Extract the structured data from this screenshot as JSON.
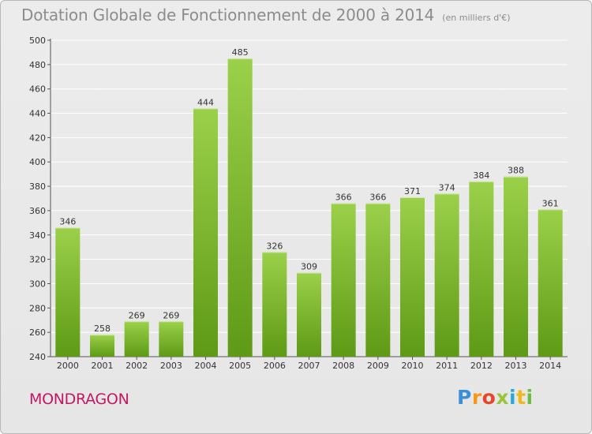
{
  "header": {
    "title": "Dotation Globale de Fonctionnement de 2000 à 2014",
    "unit": "(en milliers d'€)"
  },
  "footer": {
    "commune": "MONDRAGON",
    "logo_text": "Proxiti"
  },
  "colors": {
    "bar_light": "#9bd04a",
    "bar_dark": "#5e9a16",
    "grid": "#ffffff",
    "text": "#333333"
  },
  "chart_data": {
    "type": "bar",
    "categories": [
      "2000",
      "2001",
      "2002",
      "2003",
      "2004",
      "2005",
      "2006",
      "2007",
      "2008",
      "2009",
      "2010",
      "2011",
      "2012",
      "2013",
      "2014"
    ],
    "values": [
      346,
      258,
      269,
      269,
      444,
      485,
      326,
      309,
      366,
      366,
      371,
      374,
      384,
      388,
      361
    ],
    "ylim": [
      240,
      500
    ],
    "yticks": [
      240,
      260,
      280,
      300,
      320,
      340,
      360,
      380,
      400,
      420,
      440,
      460,
      480,
      500
    ],
    "grid": true,
    "data_labels": true
  }
}
